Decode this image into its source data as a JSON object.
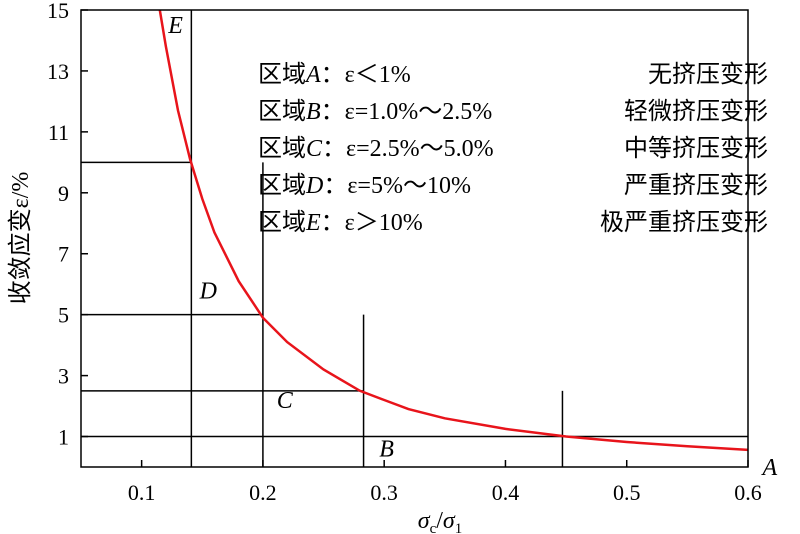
{
  "chart_data": {
    "type": "line",
    "title": "",
    "xlabel": "σc/σ1",
    "ylabel": "收敛应变ε/%",
    "xlim": [
      0.05,
      0.6
    ],
    "ylim": [
      0,
      15
    ],
    "xticks": [
      {
        "value": 0.1,
        "label": "0.1"
      },
      {
        "value": 0.2,
        "label": "0.2"
      },
      {
        "value": 0.3,
        "label": "0.3"
      },
      {
        "value": 0.4,
        "label": "0.4"
      },
      {
        "value": 0.5,
        "label": "0.5"
      },
      {
        "value": 0.6,
        "label": "0.6"
      }
    ],
    "yticks": [
      {
        "value": 1,
        "label": "1"
      },
      {
        "value": 3,
        "label": "3"
      },
      {
        "value": 5,
        "label": "5"
      },
      {
        "value": 7,
        "label": "7"
      },
      {
        "value": 9,
        "label": "9"
      },
      {
        "value": 11,
        "label": "11"
      },
      {
        "value": 13,
        "label": "13"
      },
      {
        "value": 15,
        "label": "15"
      }
    ],
    "series": [
      {
        "color": "#e8141b",
        "x": [
          0.115,
          0.12,
          0.13,
          0.14,
          0.15,
          0.16,
          0.18,
          0.2,
          0.22,
          0.25,
          0.28,
          0.3,
          0.32,
          0.35,
          0.4,
          0.45,
          0.5,
          0.55,
          0.6
        ],
        "y": [
          15.0,
          13.8,
          11.7,
          10.1,
          8.8,
          7.7,
          6.1,
          4.9,
          4.1,
          3.2,
          2.5,
          2.2,
          1.9,
          1.6,
          1.25,
          1.0,
          0.82,
          0.68,
          0.56
        ]
      }
    ],
    "boundaries": {
      "x": [
        0.141,
        0.2,
        0.283,
        0.447
      ],
      "y": [
        10,
        5,
        2.5,
        1
      ]
    },
    "region_labels": [
      {
        "label": "E",
        "x": 0.128,
        "y": 14.5
      },
      {
        "label": "D",
        "x": 0.155,
        "y": 5.8
      },
      {
        "label": "C",
        "x": 0.218,
        "y": 2.2
      },
      {
        "label": "B",
        "x": 0.302,
        "y": 0.6
      },
      {
        "label": "A",
        "x": 0.618,
        "y": 0.0
      }
    ]
  },
  "legend": [
    {
      "region": "A",
      "rule": "：ε＜1%",
      "description": "无挤压变形"
    },
    {
      "region": "B",
      "rule": "：ε=1.0%～2.5%",
      "description": "轻微挤压变形"
    },
    {
      "region": "C",
      "rule": "：ε=2.5%～5.0%",
      "description": "中等挤压变形"
    },
    {
      "region": "D",
      "rule": "：ε=5%～10%",
      "description": "严重挤压变形"
    },
    {
      "region": "E",
      "rule": "：ε＞10%",
      "description": "极严重挤压变形"
    }
  ],
  "legend_prefix": "区域"
}
